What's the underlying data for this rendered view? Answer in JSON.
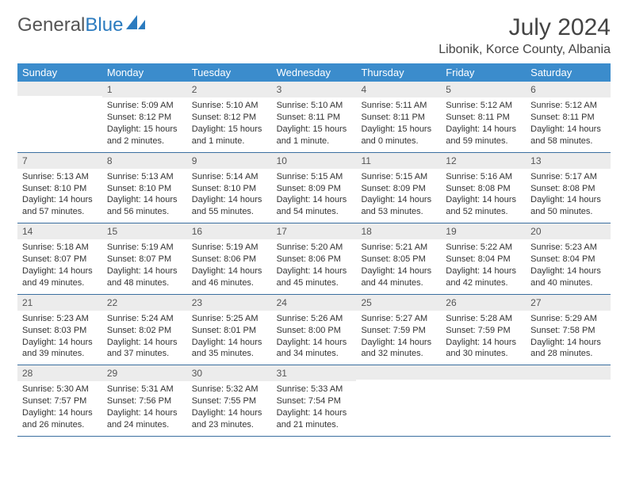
{
  "brand": {
    "part1": "General",
    "part2": "Blue"
  },
  "title": "July 2024",
  "location": "Libonik, Korce County, Albania",
  "colors": {
    "header_bg": "#3b8ccc",
    "header_fg": "#ffffff",
    "daynum_bg": "#ececec",
    "rule": "#3b6fa0",
    "brand_blue": "#2b7bbf"
  },
  "weekdays": [
    "Sunday",
    "Monday",
    "Tuesday",
    "Wednesday",
    "Thursday",
    "Friday",
    "Saturday"
  ],
  "weeks": [
    [
      {
        "n": "",
        "lines": []
      },
      {
        "n": "1",
        "lines": [
          "Sunrise: 5:09 AM",
          "Sunset: 8:12 PM",
          "Daylight: 15 hours and 2 minutes."
        ]
      },
      {
        "n": "2",
        "lines": [
          "Sunrise: 5:10 AM",
          "Sunset: 8:12 PM",
          "Daylight: 15 hours and 1 minute."
        ]
      },
      {
        "n": "3",
        "lines": [
          "Sunrise: 5:10 AM",
          "Sunset: 8:11 PM",
          "Daylight: 15 hours and 1 minute."
        ]
      },
      {
        "n": "4",
        "lines": [
          "Sunrise: 5:11 AM",
          "Sunset: 8:11 PM",
          "Daylight: 15 hours and 0 minutes."
        ]
      },
      {
        "n": "5",
        "lines": [
          "Sunrise: 5:12 AM",
          "Sunset: 8:11 PM",
          "Daylight: 14 hours and 59 minutes."
        ]
      },
      {
        "n": "6",
        "lines": [
          "Sunrise: 5:12 AM",
          "Sunset: 8:11 PM",
          "Daylight: 14 hours and 58 minutes."
        ]
      }
    ],
    [
      {
        "n": "7",
        "lines": [
          "Sunrise: 5:13 AM",
          "Sunset: 8:10 PM",
          "Daylight: 14 hours and 57 minutes."
        ]
      },
      {
        "n": "8",
        "lines": [
          "Sunrise: 5:13 AM",
          "Sunset: 8:10 PM",
          "Daylight: 14 hours and 56 minutes."
        ]
      },
      {
        "n": "9",
        "lines": [
          "Sunrise: 5:14 AM",
          "Sunset: 8:10 PM",
          "Daylight: 14 hours and 55 minutes."
        ]
      },
      {
        "n": "10",
        "lines": [
          "Sunrise: 5:15 AM",
          "Sunset: 8:09 PM",
          "Daylight: 14 hours and 54 minutes."
        ]
      },
      {
        "n": "11",
        "lines": [
          "Sunrise: 5:15 AM",
          "Sunset: 8:09 PM",
          "Daylight: 14 hours and 53 minutes."
        ]
      },
      {
        "n": "12",
        "lines": [
          "Sunrise: 5:16 AM",
          "Sunset: 8:08 PM",
          "Daylight: 14 hours and 52 minutes."
        ]
      },
      {
        "n": "13",
        "lines": [
          "Sunrise: 5:17 AM",
          "Sunset: 8:08 PM",
          "Daylight: 14 hours and 50 minutes."
        ]
      }
    ],
    [
      {
        "n": "14",
        "lines": [
          "Sunrise: 5:18 AM",
          "Sunset: 8:07 PM",
          "Daylight: 14 hours and 49 minutes."
        ]
      },
      {
        "n": "15",
        "lines": [
          "Sunrise: 5:19 AM",
          "Sunset: 8:07 PM",
          "Daylight: 14 hours and 48 minutes."
        ]
      },
      {
        "n": "16",
        "lines": [
          "Sunrise: 5:19 AM",
          "Sunset: 8:06 PM",
          "Daylight: 14 hours and 46 minutes."
        ]
      },
      {
        "n": "17",
        "lines": [
          "Sunrise: 5:20 AM",
          "Sunset: 8:06 PM",
          "Daylight: 14 hours and 45 minutes."
        ]
      },
      {
        "n": "18",
        "lines": [
          "Sunrise: 5:21 AM",
          "Sunset: 8:05 PM",
          "Daylight: 14 hours and 44 minutes."
        ]
      },
      {
        "n": "19",
        "lines": [
          "Sunrise: 5:22 AM",
          "Sunset: 8:04 PM",
          "Daylight: 14 hours and 42 minutes."
        ]
      },
      {
        "n": "20",
        "lines": [
          "Sunrise: 5:23 AM",
          "Sunset: 8:04 PM",
          "Daylight: 14 hours and 40 minutes."
        ]
      }
    ],
    [
      {
        "n": "21",
        "lines": [
          "Sunrise: 5:23 AM",
          "Sunset: 8:03 PM",
          "Daylight: 14 hours and 39 minutes."
        ]
      },
      {
        "n": "22",
        "lines": [
          "Sunrise: 5:24 AM",
          "Sunset: 8:02 PM",
          "Daylight: 14 hours and 37 minutes."
        ]
      },
      {
        "n": "23",
        "lines": [
          "Sunrise: 5:25 AM",
          "Sunset: 8:01 PM",
          "Daylight: 14 hours and 35 minutes."
        ]
      },
      {
        "n": "24",
        "lines": [
          "Sunrise: 5:26 AM",
          "Sunset: 8:00 PM",
          "Daylight: 14 hours and 34 minutes."
        ]
      },
      {
        "n": "25",
        "lines": [
          "Sunrise: 5:27 AM",
          "Sunset: 7:59 PM",
          "Daylight: 14 hours and 32 minutes."
        ]
      },
      {
        "n": "26",
        "lines": [
          "Sunrise: 5:28 AM",
          "Sunset: 7:59 PM",
          "Daylight: 14 hours and 30 minutes."
        ]
      },
      {
        "n": "27",
        "lines": [
          "Sunrise: 5:29 AM",
          "Sunset: 7:58 PM",
          "Daylight: 14 hours and 28 minutes."
        ]
      }
    ],
    [
      {
        "n": "28",
        "lines": [
          "Sunrise: 5:30 AM",
          "Sunset: 7:57 PM",
          "Daylight: 14 hours and 26 minutes."
        ]
      },
      {
        "n": "29",
        "lines": [
          "Sunrise: 5:31 AM",
          "Sunset: 7:56 PM",
          "Daylight: 14 hours and 24 minutes."
        ]
      },
      {
        "n": "30",
        "lines": [
          "Sunrise: 5:32 AM",
          "Sunset: 7:55 PM",
          "Daylight: 14 hours and 23 minutes."
        ]
      },
      {
        "n": "31",
        "lines": [
          "Sunrise: 5:33 AM",
          "Sunset: 7:54 PM",
          "Daylight: 14 hours and 21 minutes."
        ]
      },
      {
        "n": "",
        "lines": []
      },
      {
        "n": "",
        "lines": []
      },
      {
        "n": "",
        "lines": []
      }
    ]
  ]
}
